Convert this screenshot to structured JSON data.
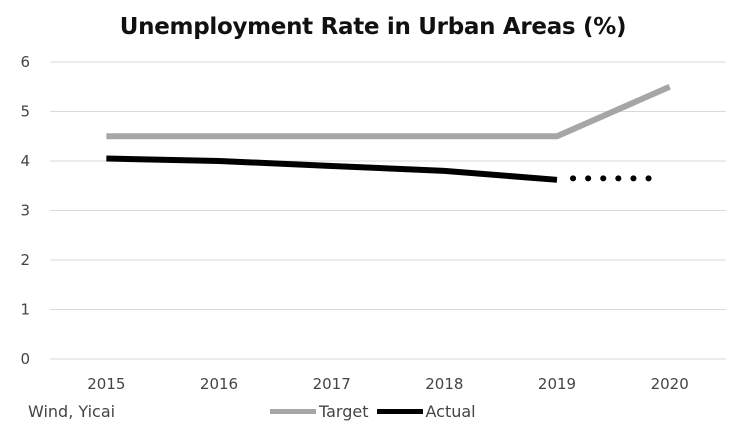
{
  "chart_data": {
    "type": "line",
    "title": "Unemployment Rate in Urban Areas (%)",
    "xlabel": "",
    "ylabel": "",
    "categories": [
      "2015",
      "2016",
      "2017",
      "2018",
      "2019",
      "2020"
    ],
    "ylim": [
      0,
      6
    ],
    "yticks": [
      0,
      1,
      2,
      3,
      4,
      5,
      6
    ],
    "grid": true,
    "legend_position": "bottom",
    "series": [
      {
        "name": "Target",
        "color": "#a6a6a6",
        "values": [
          4.5,
          4.5,
          4.5,
          4.5,
          4.5,
          5.5
        ]
      },
      {
        "name": "Actual",
        "color": "#000000",
        "values": [
          4.05,
          4.0,
          3.9,
          3.8,
          3.62,
          null
        ],
        "dotted_extension": {
          "from": "2019",
          "to": "2020",
          "value": 3.65
        }
      }
    ],
    "source": "Wind, Yicai"
  }
}
